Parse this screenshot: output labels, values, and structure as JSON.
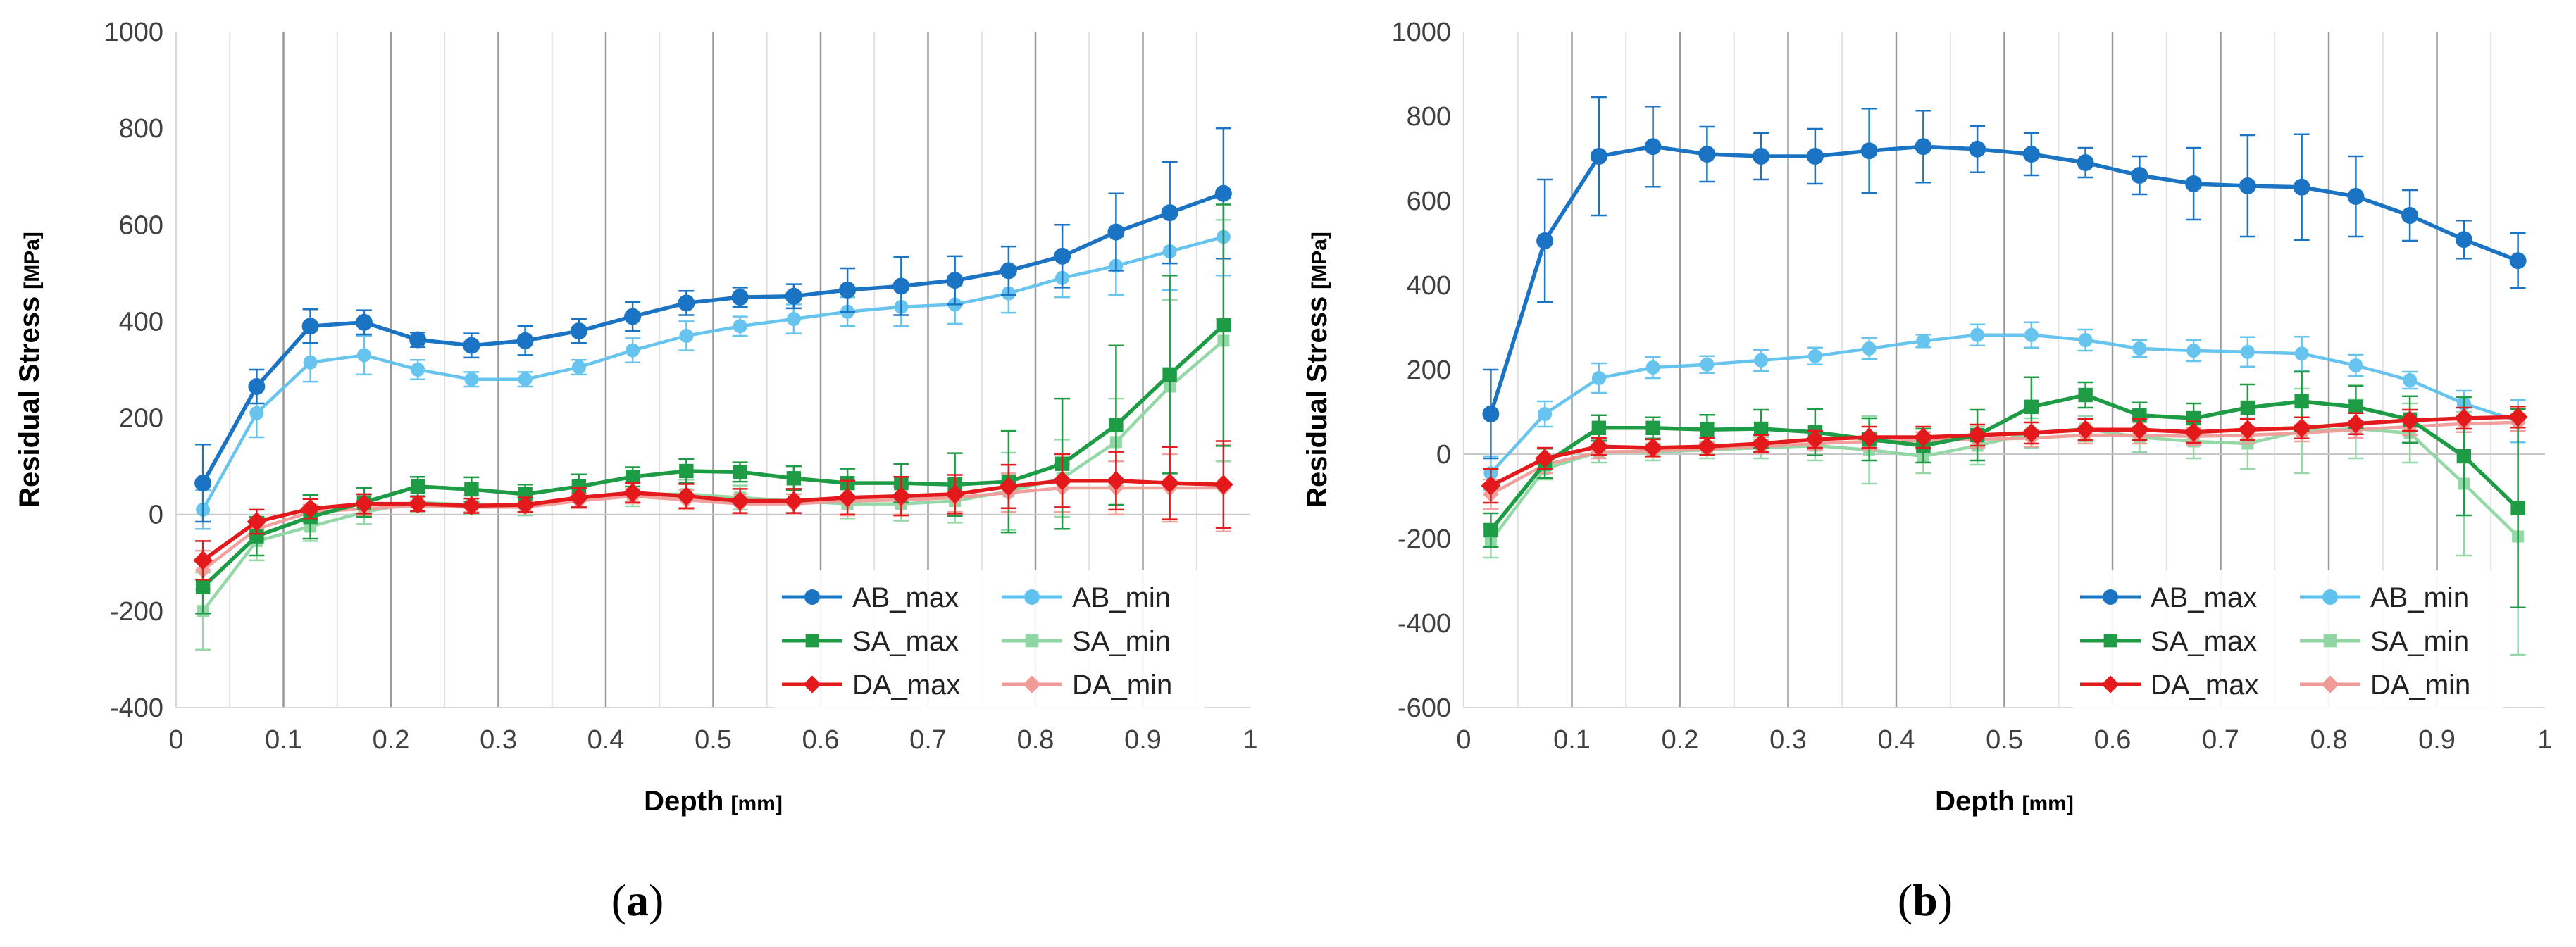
{
  "panels": [
    {
      "caption_open": "(",
      "caption_letter": "a",
      "caption_close": ")",
      "chart_data": {
        "type": "line",
        "title": "",
        "xlabel": "Depth",
        "xlabel_unit": "[mm]",
        "ylabel": "Residual Stress",
        "ylabel_unit": "[MPa]",
        "xlim": [
          0,
          1
        ],
        "ylim": [
          -400,
          1000
        ],
        "xticks": [
          0,
          0.1,
          0.2,
          0.3,
          0.4,
          0.5,
          0.6,
          0.7,
          0.8,
          0.9,
          1
        ],
        "xtick_labels": [
          "0",
          "0.1",
          "0.2",
          "0.3",
          "0.4",
          "0.5",
          "0.6",
          "0.7",
          "0.8",
          "0.9",
          "1"
        ],
        "yticks": [
          -400,
          -200,
          0,
          200,
          400,
          600,
          800,
          1000
        ],
        "ytick_labels": [
          "-400",
          "-200",
          "0",
          "200",
          "400",
          "600",
          "800",
          "1000"
        ],
        "grid": "vertical",
        "legend_position": "bottom-right",
        "x": [
          0.025,
          0.075,
          0.125,
          0.175,
          0.225,
          0.275,
          0.325,
          0.375,
          0.425,
          0.475,
          0.525,
          0.575,
          0.625,
          0.675,
          0.725,
          0.775,
          0.825,
          0.875,
          0.925,
          0.975
        ],
        "series": [
          {
            "name": "AB_max",
            "color": "#1a73c3",
            "marker": "circle",
            "light": false,
            "values": [
              65,
              265,
              390,
              398,
              362,
              350,
              360,
              380,
              410,
              438,
              450,
              452,
              465,
              473,
              485,
              505,
              535,
              585,
              625,
              665
            ],
            "errors": [
              80,
              35,
              35,
              25,
              15,
              25,
              30,
              25,
              30,
              25,
              20,
              25,
              45,
              60,
              50,
              50,
              65,
              80,
              105,
              135
            ]
          },
          {
            "name": "AB_min",
            "color": "#5ec1ee",
            "marker": "circle",
            "light": true,
            "values": [
              10,
              210,
              315,
              330,
              300,
              280,
              280,
              305,
              340,
              370,
              390,
              405,
              420,
              430,
              435,
              458,
              490,
              515,
              545,
              575
            ],
            "errors": [
              40,
              50,
              40,
              40,
              20,
              15,
              15,
              15,
              25,
              30,
              20,
              30,
              30,
              40,
              40,
              40,
              40,
              60,
              80,
              80
            ]
          },
          {
            "name": "SA_max",
            "color": "#1e9c45",
            "marker": "square",
            "light": false,
            "values": [
              -150,
              -45,
              -5,
              25,
              58,
              52,
              42,
              58,
              78,
              90,
              88,
              75,
              65,
              65,
              62,
              68,
              105,
              185,
              290,
              392
            ],
            "errors": [
              55,
              40,
              45,
              30,
              20,
              25,
              20,
              25,
              20,
              25,
              20,
              25,
              30,
              40,
              65,
              105,
              135,
              165,
              205,
              250
            ]
          },
          {
            "name": "SA_min",
            "color": "#8fd6a3",
            "marker": "square",
            "light": true,
            "values": [
              -200,
              -55,
              -25,
              5,
              25,
              20,
              18,
              35,
              42,
              42,
              35,
              28,
              22,
              22,
              28,
              48,
              75,
              150,
              265,
              360
            ],
            "errors": [
              80,
              40,
              30,
              25,
              20,
              20,
              20,
              20,
              25,
              30,
              25,
              25,
              30,
              35,
              45,
              80,
              80,
              90,
              180,
              250
            ]
          },
          {
            "name": "DA_max",
            "color": "#e3191b",
            "marker": "diamond",
            "light": false,
            "values": [
              -95,
              -15,
              12,
              22,
              22,
              18,
              20,
              35,
              45,
              38,
              28,
              28,
              35,
              38,
              42,
              58,
              70,
              70,
              65,
              62
            ],
            "errors": [
              40,
              25,
              20,
              20,
              15,
              15,
              15,
              20,
              20,
              25,
              25,
              25,
              35,
              40,
              40,
              45,
              55,
              60,
              75,
              90
            ]
          },
          {
            "name": "DA_min",
            "color": "#f19b98",
            "marker": "diamond",
            "light": true,
            "values": [
              -115,
              -30,
              5,
              12,
              18,
              15,
              15,
              28,
              38,
              30,
              22,
              22,
              28,
              30,
              35,
              45,
              55,
              55,
              55,
              55
            ],
            "errors": [
              40,
              20,
              15,
              15,
              10,
              10,
              10,
              15,
              15,
              20,
              20,
              20,
              30,
              30,
              30,
              40,
              50,
              55,
              70,
              90
            ]
          }
        ]
      }
    },
    {
      "caption_open": "(",
      "caption_letter": "b",
      "caption_close": ")",
      "chart_data": {
        "type": "line",
        "title": "",
        "xlabel": "Depth",
        "xlabel_unit": "[mm]",
        "ylabel": "Residual Stress",
        "ylabel_unit": "[MPa]",
        "xlim": [
          0,
          1
        ],
        "ylim": [
          -600,
          1000
        ],
        "xticks": [
          0,
          0.1,
          0.2,
          0.3,
          0.4,
          0.5,
          0.6,
          0.7,
          0.8,
          0.9,
          1
        ],
        "xtick_labels": [
          "0",
          "0.1",
          "0.2",
          "0.3",
          "0.4",
          "0.5",
          "0.6",
          "0.7",
          "0.8",
          "0.9",
          "1"
        ],
        "yticks": [
          -600,
          -400,
          -200,
          0,
          200,
          400,
          600,
          800,
          1000
        ],
        "ytick_labels": [
          "-600",
          "-400",
          "-200",
          "0",
          "200",
          "400",
          "600",
          "800",
          "1000"
        ],
        "grid": "vertical",
        "legend_position": "bottom-right",
        "x": [
          0.025,
          0.075,
          0.125,
          0.175,
          0.225,
          0.275,
          0.325,
          0.375,
          0.425,
          0.475,
          0.525,
          0.575,
          0.625,
          0.675,
          0.725,
          0.775,
          0.825,
          0.875,
          0.925,
          0.975
        ],
        "series": [
          {
            "name": "AB_max",
            "color": "#1a73c3",
            "marker": "circle",
            "light": false,
            "values": [
              95,
              505,
              705,
              728,
              710,
              705,
              705,
              718,
              728,
              722,
              710,
              690,
              660,
              640,
              635,
              632,
              610,
              565,
              508,
              458
            ],
            "errors": [
              105,
              145,
              140,
              95,
              65,
              55,
              65,
              100,
              85,
              55,
              50,
              35,
              45,
              85,
              120,
              125,
              95,
              60,
              45,
              65
            ]
          },
          {
            "name": "AB_min",
            "color": "#5ec1ee",
            "marker": "circle",
            "light": true,
            "values": [
              -45,
              95,
              180,
              205,
              212,
              222,
              232,
              250,
              268,
              282,
              282,
              270,
              250,
              245,
              242,
              238,
              210,
              175,
              120,
              78
            ],
            "errors": [
              40,
              30,
              35,
              25,
              20,
              25,
              20,
              25,
              15,
              25,
              30,
              25,
              20,
              25,
              35,
              40,
              25,
              20,
              30,
              50
            ]
          },
          {
            "name": "SA_max",
            "color": "#1e9c45",
            "marker": "square",
            "light": false,
            "values": [
              -180,
              -22,
              62,
              62,
              58,
              60,
              52,
              35,
              20,
              45,
              112,
              140,
              92,
              85,
              110,
              125,
              112,
              82,
              -5,
              -128
            ],
            "errors": [
              40,
              35,
              30,
              25,
              35,
              45,
              55,
              50,
              40,
              60,
              70,
              30,
              30,
              35,
              55,
              70,
              50,
              55,
              140,
              235
            ]
          },
          {
            "name": "SA_min",
            "color": "#8fd6a3",
            "marker": "square",
            "light": true,
            "values": [
              -205,
              -35,
              5,
              5,
              10,
              15,
              20,
              10,
              -5,
              20,
              50,
              60,
              40,
              30,
              25,
              55,
              60,
              50,
              -70,
              -195
            ],
            "errors": [
              40,
              25,
              25,
              20,
              20,
              25,
              35,
              80,
              40,
              45,
              35,
              30,
              35,
              40,
              60,
              100,
              70,
              70,
              170,
              280
            ]
          },
          {
            "name": "DA_max",
            "color": "#e3191b",
            "marker": "diamond",
            "light": false,
            "values": [
              -75,
              -10,
              18,
              15,
              18,
              25,
              35,
              40,
              40,
              45,
              50,
              58,
              58,
              52,
              58,
              62,
              72,
              80,
              85,
              88
            ],
            "errors": [
              40,
              25,
              20,
              20,
              20,
              20,
              20,
              25,
              25,
              25,
              25,
              25,
              25,
              25,
              25,
              25,
              25,
              25,
              25,
              25
            ]
          },
          {
            "name": "DA_min",
            "color": "#f19b98",
            "marker": "diamond",
            "light": true,
            "values": [
              -95,
              -25,
              5,
              8,
              12,
              18,
              25,
              30,
              32,
              35,
              38,
              45,
              45,
              42,
              45,
              50,
              58,
              65,
              72,
              75
            ],
            "errors": [
              35,
              20,
              15,
              15,
              15,
              15,
              15,
              20,
              20,
              20,
              20,
              20,
              20,
              20,
              20,
              20,
              20,
              20,
              20,
              20
            ]
          }
        ]
      }
    }
  ]
}
